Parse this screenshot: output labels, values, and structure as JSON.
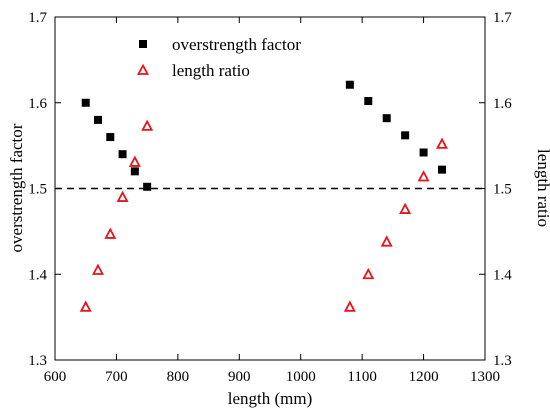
{
  "chart_data": {
    "type": "scatter",
    "xlabel": "length (mm)",
    "ylabel_left": "overstrength factor",
    "ylabel_right": "length ratio",
    "xlim": [
      600,
      1300
    ],
    "xticks": [
      "600",
      "700",
      "800",
      "900",
      "1000",
      "1100",
      "1200",
      "1300"
    ],
    "ylim_left": [
      1.3,
      1.7
    ],
    "yticks_left": [
      "1.3",
      "1.4",
      "1.5",
      "1.6",
      "1.7"
    ],
    "ylim_right": [
      1.3,
      1.7
    ],
    "yticks_right": [
      "1.3",
      "1.4",
      "1.5",
      "1.6",
      "1.7"
    ],
    "reference_line": {
      "y": 1.5,
      "style": "dashed"
    },
    "legend_position": "top-left",
    "series": [
      {
        "name": "overstrength factor",
        "axis": "left",
        "marker": "filled-square",
        "color": "#000000",
        "points": [
          {
            "x": 650,
            "y": 1.6
          },
          {
            "x": 670,
            "y": 1.58
          },
          {
            "x": 690,
            "y": 1.56
          },
          {
            "x": 710,
            "y": 1.54
          },
          {
            "x": 730,
            "y": 1.52
          },
          {
            "x": 750,
            "y": 1.502
          },
          {
            "x": 1080,
            "y": 1.621
          },
          {
            "x": 1110,
            "y": 1.602
          },
          {
            "x": 1140,
            "y": 1.582
          },
          {
            "x": 1170,
            "y": 1.562
          },
          {
            "x": 1200,
            "y": 1.542
          },
          {
            "x": 1230,
            "y": 1.522
          }
        ]
      },
      {
        "name": "length ratio",
        "axis": "right",
        "marker": "open-triangle",
        "color": "#e8141c",
        "points": [
          {
            "x": 650,
            "y": 1.362
          },
          {
            "x": 670,
            "y": 1.405
          },
          {
            "x": 690,
            "y": 1.447
          },
          {
            "x": 710,
            "y": 1.49
          },
          {
            "x": 730,
            "y": 1.531
          },
          {
            "x": 750,
            "y": 1.573
          },
          {
            "x": 1080,
            "y": 1.362
          },
          {
            "x": 1110,
            "y": 1.4
          },
          {
            "x": 1140,
            "y": 1.438
          },
          {
            "x": 1170,
            "y": 1.476
          },
          {
            "x": 1200,
            "y": 1.514
          },
          {
            "x": 1230,
            "y": 1.552
          }
        ]
      }
    ]
  }
}
